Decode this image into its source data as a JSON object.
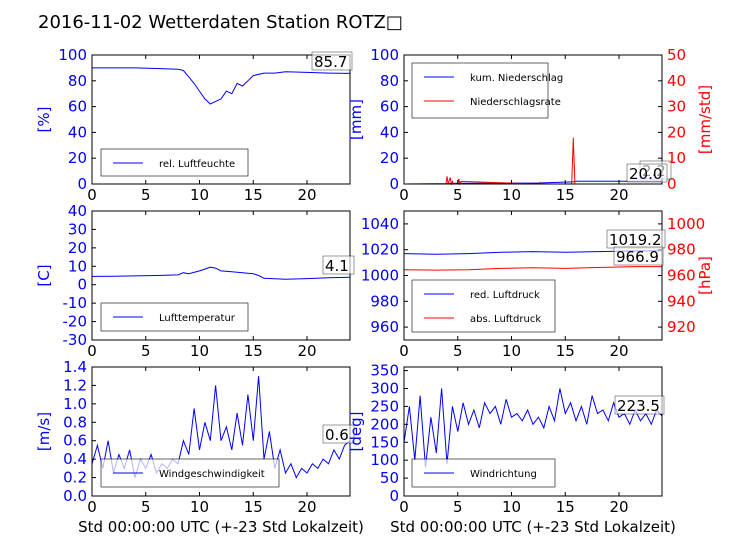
{
  "figure_title": "2016-11-02 Wetterdaten Station ROTZ□",
  "xlabel": "Std 00:00:00 UTC (+-23 Std Lokalzeit)",
  "colors": {
    "left_axis": "#0000ff",
    "right_axis": "#ff0000",
    "series_blue": "#0000ff",
    "series_red": "#ff0000"
  },
  "chart_data": [
    {
      "type": "line",
      "panel": "top-left",
      "ylabel": "[%]",
      "xlim": [
        0,
        24
      ],
      "ylim": [
        0,
        100
      ],
      "x_ticks": [
        "0",
        "5",
        "10",
        "15",
        "20"
      ],
      "y_ticks": [
        "0",
        "20",
        "40",
        "60",
        "80",
        "100"
      ],
      "annotation": "85.7",
      "legend": {
        "placement": "lower-left",
        "entries": [
          "rel. Luftfeuchte"
        ]
      },
      "series": [
        {
          "name": "rel. Luftfeuchte",
          "color": "#0000ff",
          "x": [
            0,
            2,
            4,
            6,
            8,
            8.5,
            9,
            9.5,
            10,
            10.5,
            11,
            11.5,
            12,
            12.5,
            13,
            13.5,
            14,
            14.5,
            15,
            16,
            17,
            18,
            20,
            22,
            24
          ],
          "y": [
            90,
            90,
            90,
            89.5,
            89,
            88,
            83,
            78,
            72,
            66,
            62,
            64,
            66,
            72,
            70,
            78,
            76,
            80,
            84,
            86,
            86,
            87,
            86.5,
            86,
            85.7
          ]
        }
      ]
    },
    {
      "type": "line",
      "panel": "top-right",
      "ylabel": "[mm]",
      "y2label": "[mm/std]",
      "xlim": [
        0,
        24
      ],
      "ylim": [
        0,
        100
      ],
      "y2lim": [
        0,
        50
      ],
      "x_ticks": [
        "0",
        "5",
        "10",
        "15",
        "20"
      ],
      "y_ticks": [
        "0",
        "20",
        "40",
        "60",
        "80",
        "100"
      ],
      "y2_ticks": [
        "0",
        "10",
        "20",
        "30",
        "40",
        "50"
      ],
      "annotations": [
        "2.2",
        "20.0"
      ],
      "legend": {
        "placement": "top-left",
        "entries": [
          "kum. Niederschlag",
          "Niederschlagsrate"
        ]
      },
      "series": [
        {
          "name": "kum. Niederschlag",
          "color": "#0000ff",
          "axis": "left",
          "x": [
            0,
            4,
            5,
            12.5,
            15.7,
            16,
            24
          ],
          "y": [
            0,
            0.3,
            0.6,
            0.8,
            1.6,
            2.2,
            2.2
          ]
        },
        {
          "name": "Niederschlagsrate",
          "color": "#ff0000",
          "axis": "right",
          "x": [
            0,
            3.9,
            4.0,
            4.1,
            4.3,
            4.4,
            4.5,
            4.6,
            5.0,
            5.1,
            5.2,
            5.3,
            12.5,
            12.6,
            12.7,
            15.6,
            15.75,
            15.9,
            16.0,
            24
          ],
          "y": [
            0,
            0,
            3,
            0,
            2.5,
            0,
            1,
            0,
            0,
            2,
            0,
            1,
            0,
            0.6,
            0,
            0,
            18,
            0,
            0,
            0
          ]
        }
      ]
    },
    {
      "type": "line",
      "panel": "middle-left",
      "ylabel": "[C]",
      "xlim": [
        0,
        24
      ],
      "ylim": [
        -30,
        40
      ],
      "x_ticks": [
        "0",
        "5",
        "10",
        "15",
        "20"
      ],
      "y_ticks": [
        "-30",
        "-20",
        "-10",
        "0",
        "10",
        "20",
        "30",
        "40"
      ],
      "annotation": "4.1",
      "legend": {
        "placement": "lower-left",
        "entries": [
          "Lufttemperatur"
        ]
      },
      "series": [
        {
          "name": "Lufttemperatur",
          "color": "#0000ff",
          "x": [
            0,
            2,
            4,
            6,
            8,
            8.5,
            9,
            10,
            10.5,
            11,
            11.5,
            12,
            13,
            14,
            15,
            15.5,
            16,
            17,
            18,
            20,
            22,
            24
          ],
          "y": [
            4.5,
            4.6,
            4.8,
            5,
            5.3,
            6.5,
            6,
            7.5,
            8.5,
            9.5,
            9,
            7.5,
            7,
            6.5,
            6,
            5,
            3.5,
            3.2,
            3,
            3.3,
            3.8,
            4.1
          ]
        }
      ]
    },
    {
      "type": "line",
      "panel": "middle-right",
      "ylabel": "",
      "y2label": "[hPa]",
      "xlim": [
        0,
        24
      ],
      "ylim": [
        950,
        1050
      ],
      "y2lim": [
        910,
        1010
      ],
      "x_ticks": [
        "0",
        "5",
        "10",
        "15",
        "20"
      ],
      "y_ticks": [
        "960",
        "980",
        "1000",
        "1020",
        "1040"
      ],
      "y2_ticks": [
        "920",
        "940",
        "960",
        "980",
        "1000"
      ],
      "annotations": [
        "1019.2",
        "966.9"
      ],
      "legend": {
        "placement": "lower-left",
        "entries": [
          "red. Luftdruck",
          "abs. Luftdruck"
        ]
      },
      "series": [
        {
          "name": "red. Luftdruck",
          "color": "#0000ff",
          "axis": "left",
          "x": [
            0,
            3,
            6,
            9,
            12,
            15,
            18,
            21,
            24
          ],
          "y": [
            1017,
            1016.5,
            1017,
            1018,
            1018.5,
            1018,
            1018.5,
            1019,
            1019.2
          ]
        },
        {
          "name": "abs. Luftdruck",
          "color": "#ff0000",
          "axis": "right",
          "x": [
            0,
            3,
            6,
            9,
            12,
            15,
            18,
            21,
            24
          ],
          "y": [
            964.5,
            964.2,
            964.5,
            965.5,
            966,
            965.5,
            966.2,
            966.8,
            966.9
          ]
        }
      ]
    },
    {
      "type": "line",
      "panel": "bottom-left",
      "ylabel": "[m/s]",
      "xlim": [
        0,
        24
      ],
      "ylim": [
        0,
        1.4
      ],
      "x_ticks": [
        "0",
        "5",
        "10",
        "15",
        "20"
      ],
      "y_ticks": [
        "0.0",
        "0.2",
        "0.4",
        "0.6",
        "0.8",
        "1.0",
        "1.2",
        "1.4"
      ],
      "annotation": "0.6",
      "legend": {
        "placement": "lower-left",
        "entries": [
          "Windgeschwindigkeit"
        ]
      },
      "series": [
        {
          "name": "Windgeschwindigkeit",
          "color": "#0000ff",
          "x": [
            0,
            0.5,
            1,
            1.5,
            2,
            2.5,
            3,
            3.5,
            4,
            4.5,
            5,
            5.5,
            6,
            6.5,
            7,
            7.5,
            8,
            8.5,
            9,
            9.5,
            10,
            10.5,
            11,
            11.5,
            12,
            12.5,
            13,
            13.5,
            14,
            14.5,
            15,
            15.5,
            16,
            16.5,
            17,
            17.5,
            18,
            18.5,
            19,
            19.5,
            20,
            20.5,
            21,
            21.5,
            22,
            22.5,
            23,
            23.5,
            24
          ],
          "y": [
            0.35,
            0.55,
            0.3,
            0.6,
            0.25,
            0.45,
            0.3,
            0.5,
            0.2,
            0.4,
            0.3,
            0.45,
            0.25,
            0.35,
            0.3,
            0.4,
            0.35,
            0.6,
            0.45,
            0.95,
            0.5,
            0.8,
            0.6,
            1.2,
            0.6,
            0.75,
            0.5,
            0.9,
            0.55,
            1.1,
            0.6,
            1.3,
            0.4,
            0.7,
            0.3,
            0.5,
            0.25,
            0.35,
            0.2,
            0.3,
            0.25,
            0.35,
            0.3,
            0.4,
            0.35,
            0.5,
            0.4,
            0.55,
            0.6
          ]
        }
      ]
    },
    {
      "type": "line",
      "panel": "bottom-right",
      "ylabel": "[deg]",
      "xlim": [
        0,
        24
      ],
      "ylim": [
        0,
        360
      ],
      "x_ticks": [
        "0",
        "5",
        "10",
        "15",
        "20"
      ],
      "y_ticks": [
        "0",
        "50",
        "100",
        "150",
        "200",
        "250",
        "300",
        "350"
      ],
      "annotation": "223.5",
      "legend": {
        "placement": "lower-left",
        "entries": [
          "Windrichtung"
        ]
      },
      "series": [
        {
          "name": "Windrichtung",
          "color": "#0000ff",
          "x": [
            0,
            0.5,
            1,
            1.5,
            2,
            2.5,
            3,
            3.5,
            4,
            4.5,
            5,
            5.5,
            6,
            6.5,
            7,
            7.5,
            8,
            8.5,
            9,
            9.5,
            10,
            10.5,
            11,
            11.5,
            12,
            12.5,
            13,
            13.5,
            14,
            14.5,
            15,
            15.5,
            16,
            16.5,
            17,
            17.5,
            18,
            18.5,
            19,
            19.5,
            20,
            20.5,
            21,
            21.5,
            22,
            22.5,
            23,
            23.5,
            24
          ],
          "y": [
            150,
            250,
            100,
            280,
            80,
            220,
            120,
            300,
            90,
            250,
            180,
            260,
            200,
            240,
            190,
            260,
            230,
            250,
            200,
            270,
            220,
            230,
            210,
            240,
            200,
            220,
            190,
            250,
            210,
            300,
            230,
            260,
            210,
            250,
            200,
            280,
            230,
            240,
            210,
            260,
            220,
            230,
            200,
            240,
            210,
            230,
            200,
            240,
            223.5
          ]
        }
      ]
    }
  ]
}
